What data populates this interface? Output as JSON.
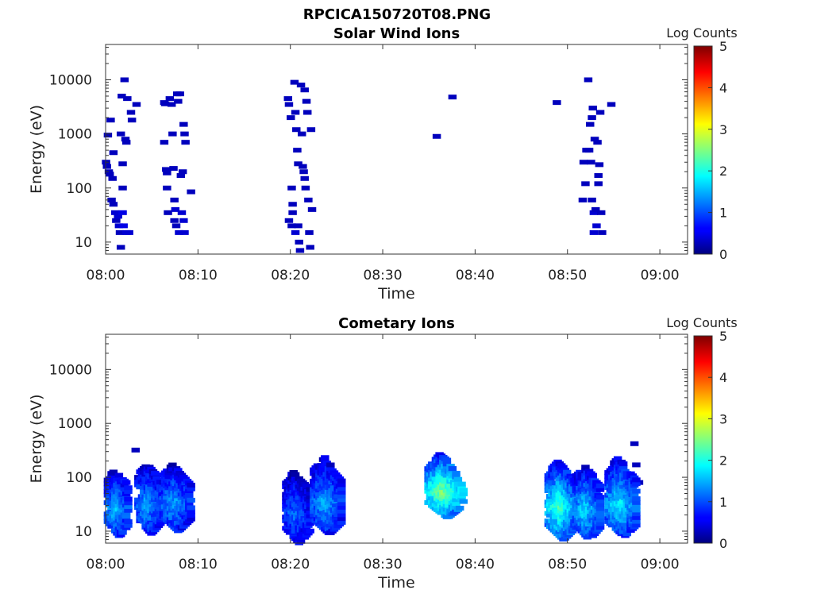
{
  "figure_title": "RPCICA150720T08.PNG",
  "chart_data": [
    {
      "type": "heatmap",
      "title": "Solar Wind Ions",
      "xlabel": "Time",
      "ylabel": "Energy (eV)",
      "yscale": "log",
      "ylim": [
        6,
        45000
      ],
      "xlim": [
        "08:00",
        "09:03"
      ],
      "x_ticks": [
        "08:00",
        "08:10",
        "08:20",
        "08:30",
        "08:40",
        "08:50",
        "09:00"
      ],
      "y_ticks": [
        "10",
        "100",
        "1000",
        "10000"
      ],
      "colorbar": {
        "label": "Log Counts",
        "min": 0,
        "max": 5,
        "ticks": [
          "0",
          "1",
          "2",
          "3",
          "4",
          "5"
        ],
        "colormap": "jet"
      },
      "grid": false,
      "cells": [
        [
          0.1,
          300,
          0.3
        ],
        [
          0.2,
          250,
          0.3
        ],
        [
          0.3,
          950,
          0.3
        ],
        [
          0.4,
          200,
          0.3
        ],
        [
          0.6,
          1800,
          0.3
        ],
        [
          0.5,
          180,
          0.3
        ],
        [
          0.8,
          150,
          0.3
        ],
        [
          0.7,
          60,
          0.3
        ],
        [
          0.9,
          50,
          0.3
        ],
        [
          1.1,
          35,
          0.4
        ],
        [
          1.2,
          25,
          0.3
        ],
        [
          0.9,
          450,
          0.3
        ],
        [
          1.4,
          30,
          0.4
        ],
        [
          1.5,
          20,
          0.4
        ],
        [
          1.6,
          15,
          0.3
        ],
        [
          1.7,
          8,
          0.3
        ],
        [
          1.8,
          5000,
          0.3
        ],
        [
          1.7,
          1000,
          0.3
        ],
        [
          1.9,
          280,
          0.3
        ],
        [
          1.9,
          100,
          0.3
        ],
        [
          1.9,
          35,
          0.5
        ],
        [
          2.0,
          20,
          0.5
        ],
        [
          2.1,
          10000,
          0.3
        ],
        [
          2.2,
          800,
          0.3
        ],
        [
          2.3,
          700,
          0.3
        ],
        [
          2.4,
          4500,
          0.3
        ],
        [
          2.3,
          15,
          0.4
        ],
        [
          2.6,
          15,
          0.4
        ],
        [
          2.8,
          2500,
          0.3
        ],
        [
          2.9,
          1800,
          0.3
        ],
        [
          3.4,
          3500,
          0.3
        ],
        [
          6.4,
          3800,
          0.3
        ],
        [
          6.5,
          3600,
          0.3
        ],
        [
          6.4,
          700,
          0.3
        ],
        [
          6.6,
          220,
          0.3
        ],
        [
          6.7,
          190,
          0.3
        ],
        [
          6.7,
          100,
          0.3
        ],
        [
          6.8,
          35,
          0.3
        ],
        [
          7.0,
          4500,
          0.3
        ],
        [
          7.2,
          3500,
          0.3
        ],
        [
          7.3,
          1000,
          0.3
        ],
        [
          7.4,
          230,
          0.3
        ],
        [
          7.5,
          60,
          0.3
        ],
        [
          7.6,
          40,
          0.4
        ],
        [
          7.5,
          25,
          0.3
        ],
        [
          7.8,
          5500,
          0.3
        ],
        [
          7.9,
          4000,
          0.3
        ],
        [
          7.7,
          20,
          0.3
        ],
        [
          8.0,
          15,
          0.4
        ],
        [
          8.1,
          5500,
          0.3
        ],
        [
          8.2,
          170,
          0.3
        ],
        [
          8.4,
          200,
          0.3
        ],
        [
          8.5,
          1500,
          0.3
        ],
        [
          8.6,
          1000,
          0.3
        ],
        [
          8.7,
          700,
          0.3
        ],
        [
          8.3,
          35,
          0.4
        ],
        [
          8.5,
          25,
          0.4
        ],
        [
          8.6,
          15,
          0.4
        ],
        [
          9.3,
          85,
          0.3
        ],
        [
          19.8,
          4500,
          0.3
        ],
        [
          19.9,
          3500,
          0.3
        ],
        [
          20.1,
          2000,
          0.3
        ],
        [
          20.2,
          100,
          0.3
        ],
        [
          19.9,
          25,
          0.3
        ],
        [
          20.2,
          20,
          0.3
        ],
        [
          20.3,
          35,
          0.3
        ],
        [
          20.3,
          50,
          0.3
        ],
        [
          20.5,
          9000,
          0.3
        ],
        [
          20.6,
          2500,
          0.3
        ],
        [
          20.7,
          1200,
          0.3
        ],
        [
          20.8,
          500,
          0.3
        ],
        [
          20.9,
          280,
          0.3
        ],
        [
          20.6,
          15,
          0.4
        ],
        [
          20.9,
          20,
          0.3
        ],
        [
          21.0,
          10,
          0.3
        ],
        [
          21.1,
          7,
          0.3
        ],
        [
          21.2,
          8000,
          0.3
        ],
        [
          21.3,
          1000,
          0.3
        ],
        [
          21.4,
          250,
          0.3
        ],
        [
          21.5,
          200,
          0.3
        ],
        [
          21.6,
          6500,
          0.3
        ],
        [
          21.7,
          100,
          0.3
        ],
        [
          21.8,
          4000,
          0.3
        ],
        [
          21.9,
          2500,
          0.3
        ],
        [
          22.0,
          60,
          0.3
        ],
        [
          22.1,
          15,
          0.3
        ],
        [
          22.2,
          8,
          0.3
        ],
        [
          22.3,
          1200,
          0.3
        ],
        [
          22.4,
          40,
          0.3
        ],
        [
          21.6,
          150,
          0.3
        ],
        [
          35.9,
          900,
          0.3
        ],
        [
          37.6,
          4800,
          0.3
        ],
        [
          48.9,
          3800,
          0.3
        ],
        [
          51.7,
          60,
          0.3
        ],
        [
          52.0,
          120,
          0.3
        ],
        [
          52.1,
          500,
          0.3
        ],
        [
          52.3,
          10000,
          0.3
        ],
        [
          52.4,
          500,
          0.3
        ],
        [
          52.5,
          1500,
          0.3
        ],
        [
          52.6,
          300,
          0.3
        ],
        [
          52.7,
          2000,
          0.3
        ],
        [
          52.8,
          3000,
          0.3
        ],
        [
          52.7,
          60,
          0.3
        ],
        [
          52.9,
          35,
          0.4
        ],
        [
          52.9,
          15,
          0.4
        ],
        [
          53.0,
          800,
          0.3
        ],
        [
          53.1,
          40,
          0.3
        ],
        [
          53.2,
          20,
          0.4
        ],
        [
          53.3,
          700,
          0.3
        ],
        [
          53.4,
          170,
          0.3
        ],
        [
          53.4,
          120,
          0.3
        ],
        [
          53.5,
          270,
          0.3
        ],
        [
          53.6,
          2500,
          0.3
        ],
        [
          53.7,
          35,
          0.3
        ],
        [
          53.8,
          15,
          0.3
        ],
        [
          54.8,
          3500,
          0.3
        ],
        [
          51.8,
          300,
          0.3
        ]
      ]
    },
    {
      "type": "heatmap",
      "title": "Cometary Ions",
      "xlabel": "Time",
      "ylabel": "Energy (eV)",
      "yscale": "log",
      "ylim": [
        6,
        45000
      ],
      "xlim": [
        "08:00",
        "09:03"
      ],
      "x_ticks": [
        "08:00",
        "08:10",
        "08:20",
        "08:30",
        "08:40",
        "08:50",
        "09:00"
      ],
      "y_ticks": [
        "10",
        "100",
        "1000",
        "10000"
      ],
      "colorbar": {
        "label": "Log Counts",
        "min": 0,
        "max": 5,
        "ticks": [
          "0",
          "1",
          "2",
          "3",
          "4",
          "5"
        ],
        "colormap": "jet"
      },
      "grid": false,
      "bursts": [
        {
          "t0": 0.3,
          "t1": 2.6,
          "emin": 8,
          "emax": 150,
          "peak": 1.6
        },
        {
          "t0": 3.6,
          "t1": 6.2,
          "emin": 9,
          "emax": 200,
          "peak": 1.5
        },
        {
          "t0": 6.3,
          "t1": 9.3,
          "emin": 10,
          "emax": 190,
          "peak": 1.5
        },
        {
          "t0": 19.6,
          "t1": 22.2,
          "emin": 6,
          "emax": 130,
          "peak": 1.2
        },
        {
          "t0": 22.6,
          "t1": 25.7,
          "emin": 9,
          "emax": 250,
          "peak": 1.5
        },
        {
          "t0": 35.0,
          "t1": 38.8,
          "emin": 18,
          "emax": 300,
          "peak": 2.6
        },
        {
          "t0": 48.0,
          "t1": 51.0,
          "emin": 7,
          "emax": 220,
          "peak": 2.3
        },
        {
          "t0": 51.0,
          "t1": 53.6,
          "emin": 7,
          "emax": 170,
          "peak": 1.8
        },
        {
          "t0": 54.5,
          "t1": 57.6,
          "emin": 8,
          "emax": 250,
          "peak": 1.9
        }
      ],
      "cells": [
        [
          3.3,
          320,
          0.3
        ],
        [
          57.3,
          420,
          0.3
        ],
        [
          57.8,
          80,
          0.3
        ],
        [
          57.5,
          170,
          0.3
        ]
      ]
    }
  ]
}
